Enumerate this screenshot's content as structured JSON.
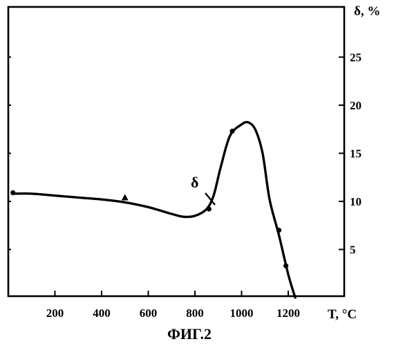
{
  "chart_data": {
    "type": "line",
    "title": "",
    "caption": "ФИГ.2",
    "xlabel": "T, °C",
    "ylabel": "δ, %",
    "curve_label": "δ",
    "xlim": [
      0,
      1400
    ],
    "ylim": [
      0,
      30
    ],
    "x_ticks": [
      200,
      400,
      600,
      800,
      1000,
      1200
    ],
    "y_ticks": [
      5,
      10,
      15,
      20,
      25
    ],
    "y_tick_labels": [
      "5",
      "10",
      "15",
      "20",
      "25"
    ],
    "y_axis_side": "right",
    "grid": false,
    "legend": "none",
    "series": [
      {
        "values_x": [
          20,
          100,
          200,
          300,
          400,
          500,
          600,
          700,
          750,
          800,
          850,
          880,
          910,
          950,
          1000,
          1030,
          1060,
          1090,
          1120,
          1160,
          1200,
          1230
        ],
        "values_y": [
          10.8,
          10.8,
          10.6,
          10.4,
          10.2,
          9.9,
          9.4,
          8.7,
          8.4,
          8.5,
          9.2,
          10.6,
          13.5,
          16.8,
          18.0,
          18.2,
          17.4,
          15.0,
          10.2,
          6.5,
          2.4,
          0
        ]
      }
    ],
    "markers": [
      {
        "x": 20,
        "y": 10.9,
        "shape": "dot"
      },
      {
        "x": 500,
        "y": 10.4,
        "shape": "triangle"
      },
      {
        "x": 860,
        "y": 9.2,
        "shape": "dot"
      },
      {
        "x": 960,
        "y": 17.3,
        "shape": "dot"
      },
      {
        "x": 1160,
        "y": 7.0,
        "shape": "dot"
      },
      {
        "x": 1190,
        "y": 3.3,
        "shape": "dot"
      }
    ]
  }
}
